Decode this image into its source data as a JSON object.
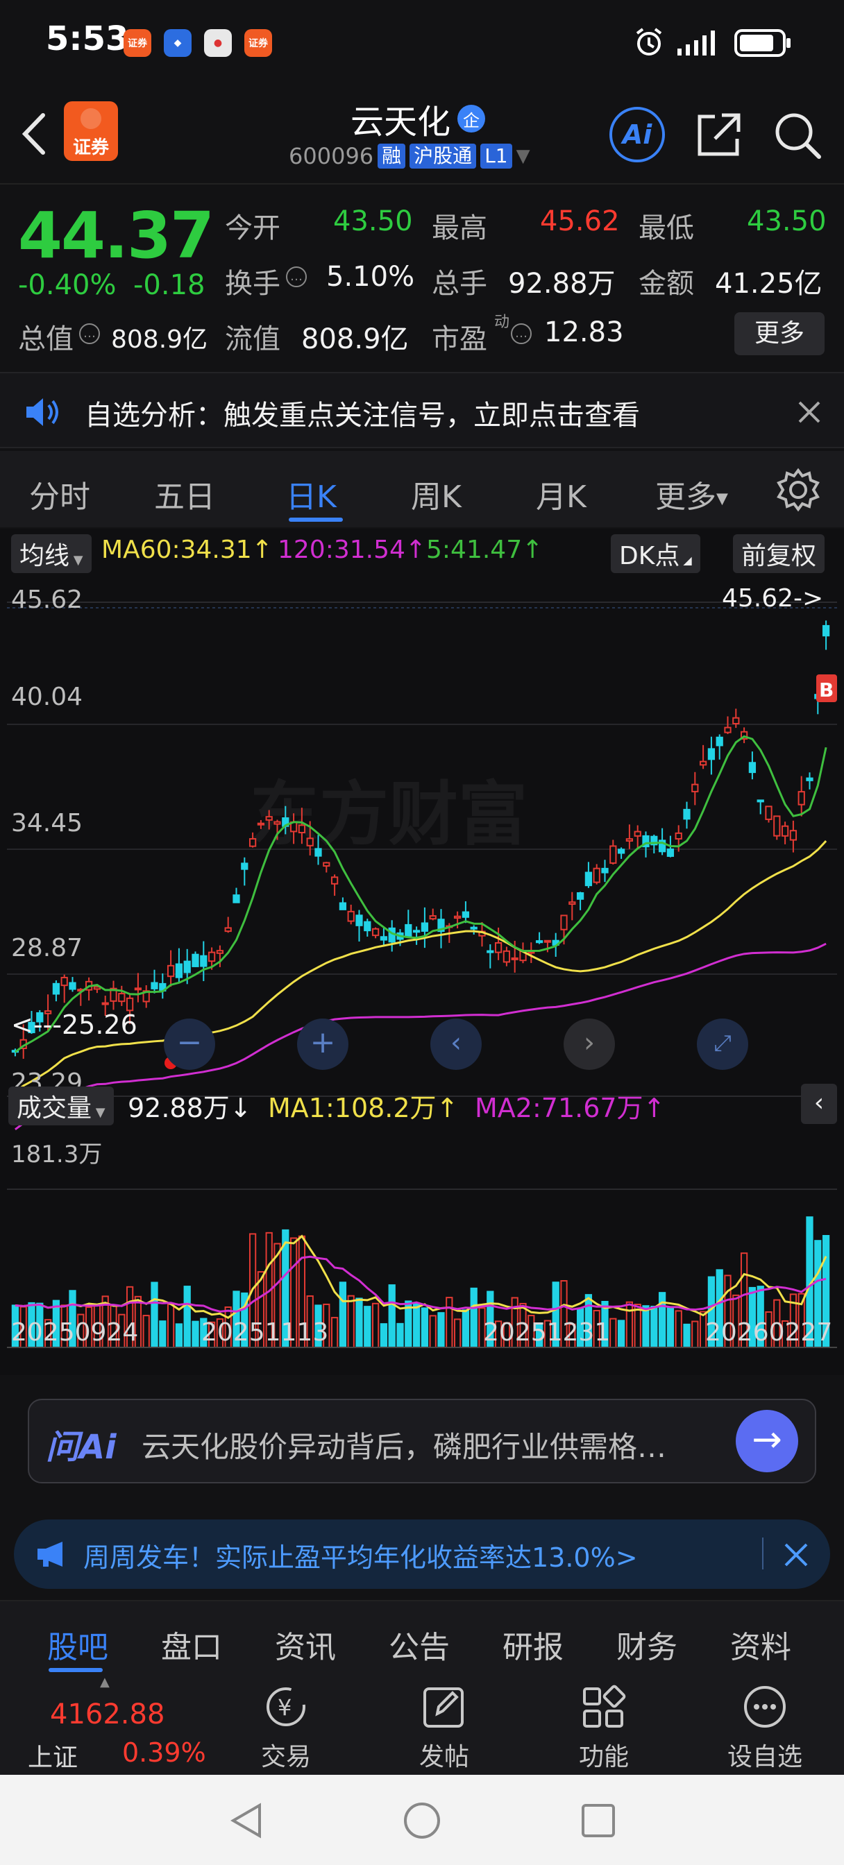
{
  "status_bar": {
    "time": "5:53",
    "app_badge_1": "证券",
    "app_badge_4": "证券"
  },
  "header": {
    "name": "云天化",
    "enterprise_badge": "企",
    "code": "600096",
    "tag_margin": "融",
    "tag_connect": "沪股通",
    "tag_level": "L1",
    "ai_label": "Ai",
    "logo_text": "证券"
  },
  "quote": {
    "price": "44.37",
    "change_pct": "-0.40%",
    "change_amt": "-0.18",
    "open_label": "今开",
    "open": "43.50",
    "high_label": "最高",
    "high": "45.62",
    "low_label": "最低",
    "low": "43.50",
    "turnover_label": "换手",
    "turnover": "5.10%",
    "volume_label": "总手",
    "volume": "92.88万",
    "amount_label": "金额",
    "amount": "41.25亿",
    "mktcap_label": "总值",
    "mktcap": "808.9亿",
    "float_label": "流值",
    "float": "808.9亿",
    "pe_label": "市盈",
    "pe_sup": "动",
    "pe": "12.83",
    "more_label": "更多"
  },
  "notice": {
    "text": "自选分析：触发重点关注信号，立即点击查看"
  },
  "period_tabs": [
    "分时",
    "五日",
    "日K",
    "周K",
    "月K",
    "更多"
  ],
  "kline": {
    "ma_selector": "均线",
    "ma60": "MA60:34.31↑",
    "ma120": "120:31.54↑",
    "ma5": "5:41.47↑",
    "dk_label": "DK点",
    "adjust_label": "前复权",
    "watermark": "东方财富",
    "y_ticks": [
      "45.62",
      "40.04",
      "34.45",
      "28.87",
      "23.29"
    ],
    "high_marker": "45.62->",
    "low_marker": "<---25.26",
    "buy_marker": "B",
    "colors": {
      "up": "#e33a33",
      "down": "#22d3e6",
      "ma5": "#3fbf3f",
      "ma60": "#f0e04a",
      "ma120": "#d12ed1"
    }
  },
  "volume": {
    "selector": "成交量",
    "vol": "92.88万↓",
    "ma1": "MA1:108.2万↑",
    "ma2": "MA2:71.67万↑",
    "max_label": "181.3万",
    "dates": [
      "20250924",
      "20251113",
      "20251231",
      "20260227"
    ]
  },
  "chart_data": {
    "type": "candlestick",
    "ylim": [
      23.29,
      45.62
    ],
    "y_ticks": [
      45.62,
      40.04,
      34.45,
      28.87,
      23.29
    ],
    "x_dates": [
      "20250924",
      "20251113",
      "20251231",
      "20260227"
    ],
    "high": 45.62,
    "low": 25.26,
    "volume_max": "181.3万"
  },
  "ai_bar": {
    "logo": "问Ai",
    "text": "云天化股价异动背后，磷肥行业供需格…"
  },
  "promo": {
    "text": "周周发车！实际止盈平均年化收益率达13.0%>"
  },
  "bottom_tabs": [
    "股吧",
    "盘口",
    "资讯",
    "公告",
    "研报",
    "财务",
    "资料"
  ],
  "bottom_nav": {
    "index_value": "4162.88",
    "index_name": "上证",
    "index_change": "0.39%",
    "trade": "交易",
    "post": "发帖",
    "functions": "功能",
    "add_watch": "设自选"
  }
}
